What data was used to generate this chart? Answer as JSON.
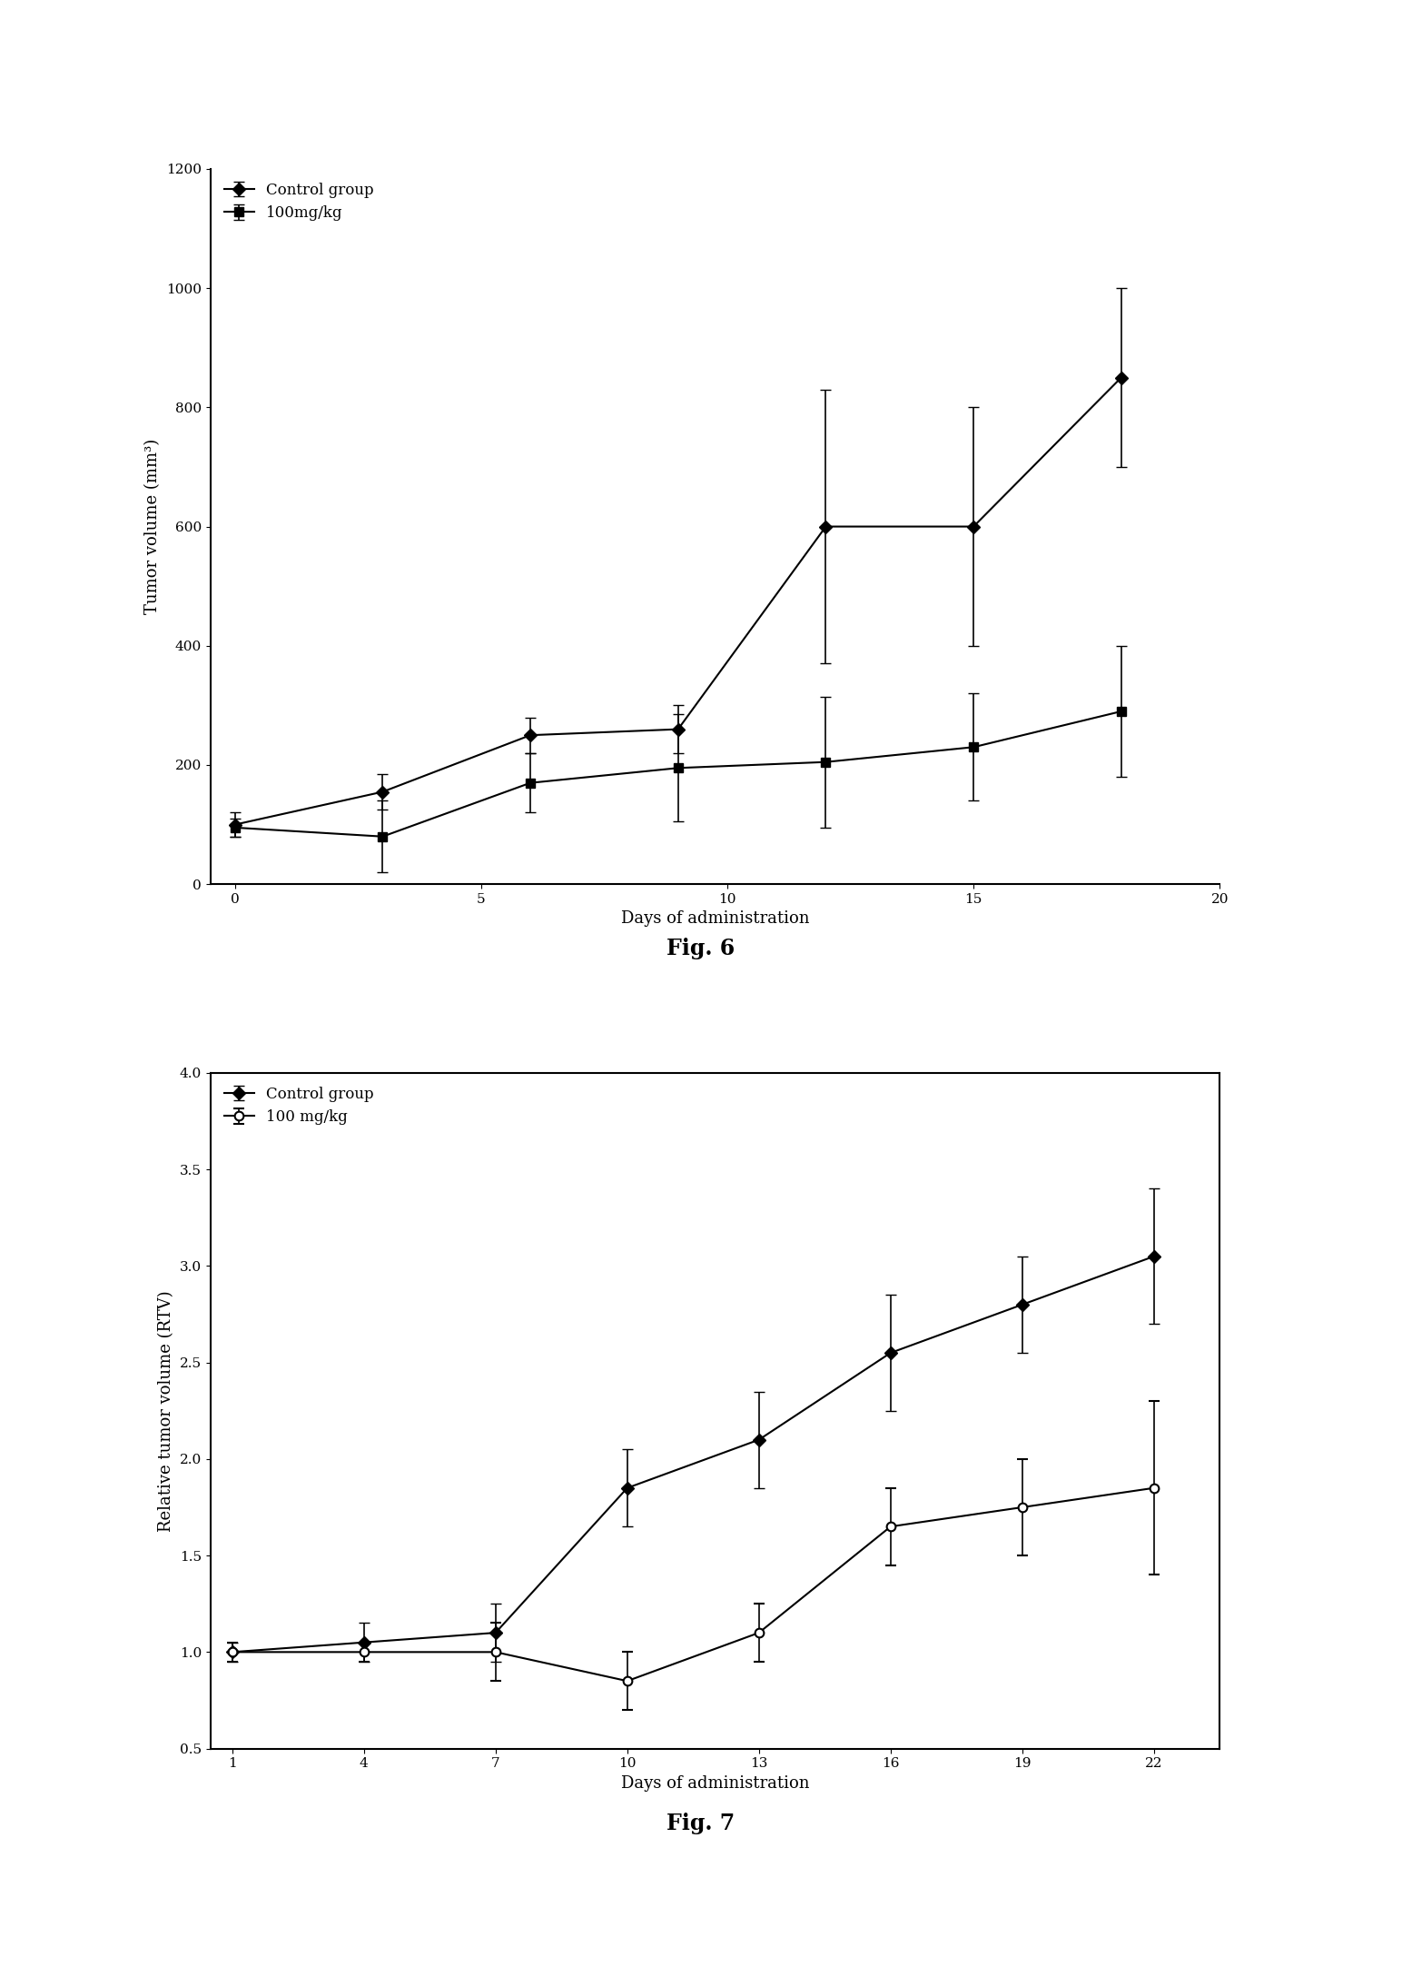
{
  "fig6": {
    "control_x": [
      0,
      3,
      6,
      9,
      12,
      15,
      18
    ],
    "control_y": [
      100,
      155,
      250,
      260,
      600,
      600,
      850
    ],
    "control_yerr": [
      20,
      30,
      30,
      40,
      230,
      200,
      150
    ],
    "treatment_x": [
      0,
      3,
      6,
      9,
      12,
      15,
      18
    ],
    "treatment_y": [
      95,
      80,
      170,
      195,
      205,
      230,
      290
    ],
    "treatment_yerr": [
      15,
      60,
      50,
      90,
      110,
      90,
      110
    ],
    "ylabel": "Tumor volume (mm³)",
    "xlabel": "Days of administration",
    "ylim": [
      0,
      1200
    ],
    "xlim": [
      -0.5,
      20
    ],
    "yticks": [
      0,
      200,
      400,
      600,
      800,
      1000,
      1200
    ],
    "xticks": [
      0,
      5,
      10,
      15,
      20
    ],
    "legend1": "Control group",
    "legend2": "100mg/kg",
    "figcaption": "Fig. 6"
  },
  "fig7": {
    "control_x": [
      1,
      4,
      7,
      10,
      13,
      16,
      19,
      22
    ],
    "control_y": [
      1.0,
      1.05,
      1.1,
      1.85,
      2.1,
      2.55,
      2.8,
      3.05
    ],
    "control_yerr": [
      0.05,
      0.1,
      0.15,
      0.2,
      0.25,
      0.3,
      0.25,
      0.35
    ],
    "treatment_x": [
      1,
      4,
      7,
      10,
      13,
      16,
      19,
      22
    ],
    "treatment_y": [
      1.0,
      1.0,
      1.0,
      0.85,
      1.1,
      1.65,
      1.75,
      1.85
    ],
    "treatment_yerr": [
      0.05,
      0.05,
      0.15,
      0.15,
      0.15,
      0.2,
      0.25,
      0.45
    ],
    "ylabel": "Relative tumor volume (RTV)",
    "xlabel": "Days of administration",
    "ylim": [
      0.5,
      4.0
    ],
    "xlim": [
      0.5,
      23.5
    ],
    "yticks": [
      0.5,
      1.0,
      1.5,
      2.0,
      2.5,
      3.0,
      3.5,
      4.0
    ],
    "xticks": [
      1,
      4,
      7,
      10,
      13,
      16,
      19,
      22
    ],
    "legend1": "Control group",
    "legend2": "100 mg/kg",
    "figcaption": "Fig. 7"
  },
  "background_color": "#ffffff",
  "fontsize_label": 13,
  "fontsize_tick": 11,
  "fontsize_caption": 17,
  "fontsize_legend": 12
}
